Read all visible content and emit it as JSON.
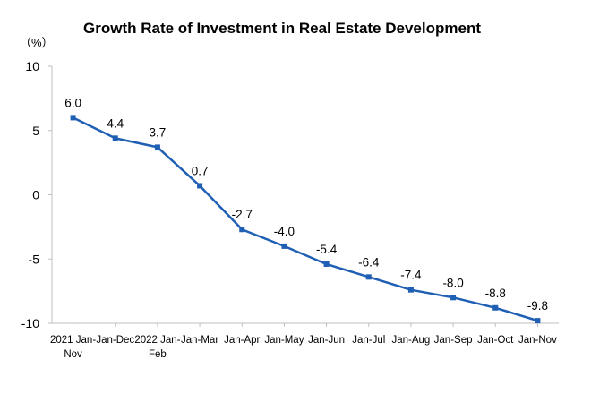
{
  "chart_data": {
    "type": "line",
    "title": "Growth Rate of Investment in Real Estate Development",
    "unit": "（%）",
    "categories": [
      "2021 Jan-\nNov",
      "Jan-Dec",
      "2022 Jan-\nFeb",
      "Jan-Mar",
      "Jan-Apr",
      "Jan-May",
      "Jan-Jun",
      "Jan-Jul",
      "Jan-Aug",
      "Jan-Sep",
      "Jan-Oct",
      "Jan-Nov"
    ],
    "series": [
      {
        "values": [
          6.0,
          4.4,
          3.7,
          0.7,
          -2.7,
          -4.0,
          -5.4,
          -6.4,
          -7.4,
          -8.0,
          -8.8,
          -9.8
        ],
        "labels": [
          "6.0",
          "4.4",
          "3.7",
          "0.7",
          "-2.7",
          "-4.0",
          "-5.4",
          "-6.4",
          "-7.4",
          "-8.0",
          "-8.8",
          "-9.8"
        ]
      }
    ],
    "ylim": [
      -10,
      10
    ],
    "yticks": [
      10,
      5,
      0,
      -5,
      -10
    ],
    "ytick_labels": [
      "10",
      "5",
      "0",
      "-5",
      "-10"
    ],
    "grid": false,
    "legend": "none",
    "line_color": "#1F5FB4"
  }
}
